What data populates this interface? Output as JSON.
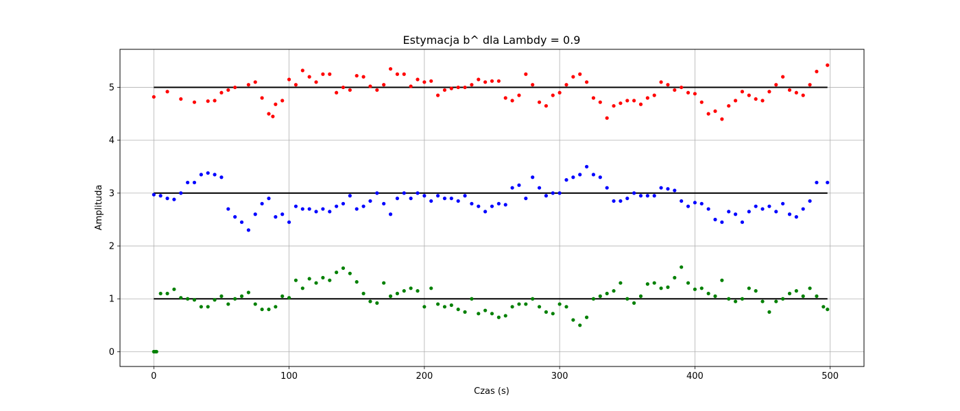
{
  "chart_data": {
    "type": "scatter",
    "title": "Estymacja b^ dla Lambdy = 0.9",
    "xlabel": "Czas (s)",
    "ylabel": "Amplituda",
    "xlim": [
      -25,
      525
    ],
    "ylim": [
      -0.28,
      5.72
    ],
    "xticks": [
      0,
      100,
      200,
      300,
      400,
      500
    ],
    "yticks": [
      0,
      1,
      2,
      3,
      4,
      5
    ],
    "grid": true,
    "reference_lines": [
      {
        "y": 5,
        "x": [
          0,
          498
        ],
        "color": "#000000"
      },
      {
        "y": 3,
        "x": [
          0,
          498
        ],
        "color": "#000000"
      },
      {
        "y": 1,
        "x": [
          0,
          498
        ],
        "color": "#000000"
      }
    ],
    "series": [
      {
        "color": "#ff0000",
        "x": [
          0,
          10,
          20,
          30,
          40,
          45,
          50,
          55,
          60,
          70,
          75,
          80,
          85,
          88,
          90,
          95,
          100,
          105,
          110,
          115,
          120,
          125,
          130,
          135,
          140,
          145,
          150,
          155,
          160,
          165,
          170,
          175,
          180,
          185,
          190,
          195,
          200,
          205,
          210,
          215,
          220,
          225,
          230,
          235,
          240,
          245,
          250,
          255,
          260,
          265,
          270,
          275,
          280,
          285,
          290,
          295,
          300,
          305,
          310,
          315,
          320,
          325,
          330,
          335,
          340,
          345,
          350,
          355,
          360,
          365,
          370,
          375,
          380,
          385,
          390,
          395,
          400,
          405,
          410,
          415,
          420,
          425,
          430,
          435,
          440,
          445,
          450,
          455,
          460,
          465,
          470,
          475,
          480,
          485,
          490,
          498
        ],
        "y": [
          4.82,
          4.92,
          4.78,
          4.72,
          4.74,
          4.75,
          4.9,
          4.95,
          5.0,
          5.05,
          5.1,
          4.8,
          4.5,
          4.45,
          4.68,
          4.75,
          5.15,
          5.05,
          5.32,
          5.2,
          5.1,
          5.25,
          5.25,
          4.9,
          5.0,
          4.95,
          5.22,
          5.2,
          5.02,
          4.95,
          5.05,
          5.35,
          5.25,
          5.25,
          5.02,
          5.15,
          5.1,
          5.12,
          4.85,
          4.95,
          4.98,
          5.0,
          5.0,
          5.05,
          5.15,
          5.1,
          5.12,
          5.12,
          4.8,
          4.75,
          4.85,
          5.25,
          5.05,
          4.72,
          4.65,
          4.85,
          4.9,
          5.05,
          5.2,
          5.25,
          5.1,
          4.8,
          4.72,
          4.42,
          4.65,
          4.7,
          4.75,
          4.75,
          4.68,
          4.8,
          4.85,
          5.1,
          5.05,
          4.95,
          5.0,
          4.9,
          4.88,
          4.72,
          4.5,
          4.55,
          4.4,
          4.65,
          4.75,
          4.92,
          4.85,
          4.78,
          4.75,
          4.92,
          5.05,
          5.2,
          4.95,
          4.9,
          4.85,
          5.05,
          5.3,
          5.42
        ]
      },
      {
        "color": "#0000ff",
        "x": [
          0,
          5,
          10,
          15,
          20,
          25,
          30,
          35,
          40,
          45,
          50,
          55,
          60,
          65,
          70,
          75,
          80,
          85,
          90,
          95,
          100,
          105,
          110,
          115,
          120,
          125,
          130,
          135,
          140,
          145,
          150,
          155,
          160,
          165,
          170,
          175,
          180,
          185,
          190,
          195,
          200,
          205,
          210,
          215,
          220,
          225,
          230,
          235,
          240,
          245,
          250,
          255,
          260,
          265,
          270,
          275,
          280,
          285,
          290,
          295,
          300,
          305,
          310,
          315,
          320,
          325,
          330,
          335,
          340,
          345,
          350,
          355,
          360,
          365,
          370,
          375,
          380,
          385,
          390,
          395,
          400,
          405,
          410,
          415,
          420,
          425,
          430,
          435,
          440,
          445,
          450,
          455,
          460,
          465,
          470,
          475,
          480,
          485,
          490,
          498
        ],
        "y": [
          2.97,
          2.95,
          2.9,
          2.88,
          3.0,
          3.2,
          3.2,
          3.35,
          3.38,
          3.35,
          3.3,
          2.7,
          2.55,
          2.45,
          2.3,
          2.6,
          2.8,
          2.9,
          2.55,
          2.6,
          2.45,
          2.75,
          2.7,
          2.7,
          2.65,
          2.7,
          2.65,
          2.75,
          2.8,
          2.95,
          2.7,
          2.75,
          2.85,
          3.0,
          2.8,
          2.6,
          2.9,
          3.0,
          2.9,
          3.0,
          2.95,
          2.85,
          2.95,
          2.9,
          2.9,
          2.85,
          2.95,
          2.8,
          2.75,
          2.65,
          2.75,
          2.8,
          2.78,
          3.1,
          3.15,
          2.9,
          3.3,
          3.1,
          2.95,
          3.0,
          3.0,
          3.25,
          3.3,
          3.35,
          3.5,
          3.35,
          3.3,
          3.1,
          2.85,
          2.85,
          2.9,
          3.0,
          2.95,
          2.95,
          2.95,
          3.1,
          3.08,
          3.05,
          2.85,
          2.75,
          2.82,
          2.8,
          2.7,
          2.5,
          2.45,
          2.65,
          2.6,
          2.45,
          2.65,
          2.75,
          2.7,
          2.75,
          2.65,
          2.8,
          2.6,
          2.55,
          2.7,
          2.85,
          3.2,
          3.2
        ]
      },
      {
        "color": "#008000",
        "x": [
          0,
          1,
          2,
          5,
          10,
          15,
          20,
          25,
          30,
          35,
          40,
          45,
          50,
          55,
          60,
          65,
          70,
          75,
          80,
          85,
          90,
          95,
          100,
          105,
          110,
          115,
          120,
          125,
          130,
          135,
          140,
          145,
          150,
          155,
          160,
          165,
          170,
          175,
          180,
          185,
          190,
          195,
          200,
          205,
          210,
          215,
          220,
          225,
          230,
          235,
          240,
          245,
          250,
          255,
          260,
          265,
          270,
          275,
          280,
          285,
          290,
          295,
          300,
          305,
          310,
          315,
          320,
          325,
          330,
          335,
          340,
          345,
          350,
          355,
          360,
          365,
          370,
          375,
          380,
          385,
          390,
          395,
          400,
          405,
          410,
          415,
          420,
          425,
          430,
          435,
          440,
          445,
          450,
          455,
          460,
          465,
          470,
          475,
          480,
          485,
          490,
          495,
          498
        ],
        "y": [
          0.0,
          0.0,
          0.0,
          1.1,
          1.1,
          1.18,
          1.02,
          1.0,
          0.98,
          0.85,
          0.85,
          0.98,
          1.05,
          0.9,
          1.0,
          1.05,
          1.12,
          0.9,
          0.8,
          0.8,
          0.85,
          1.05,
          1.02,
          1.35,
          1.2,
          1.38,
          1.3,
          1.4,
          1.35,
          1.5,
          1.58,
          1.48,
          1.32,
          1.1,
          0.95,
          0.92,
          1.3,
          1.05,
          1.1,
          1.15,
          1.2,
          1.15,
          0.85,
          1.2,
          0.9,
          0.85,
          0.88,
          0.8,
          0.75,
          1.0,
          0.72,
          0.78,
          0.72,
          0.65,
          0.68,
          0.85,
          0.9,
          0.9,
          1.0,
          0.85,
          0.75,
          0.72,
          0.9,
          0.85,
          0.6,
          0.5,
          0.65,
          1.0,
          1.05,
          1.1,
          1.15,
          1.3,
          1.0,
          0.92,
          1.05,
          1.28,
          1.3,
          1.2,
          1.22,
          1.4,
          1.6,
          1.3,
          1.18,
          1.2,
          1.1,
          1.05,
          1.35,
          1.0,
          0.95,
          1.0,
          1.2,
          1.15,
          0.95,
          0.75,
          0.95,
          1.0,
          1.1,
          1.15,
          1.05,
          1.2,
          1.05,
          0.85,
          0.8
        ]
      }
    ]
  }
}
